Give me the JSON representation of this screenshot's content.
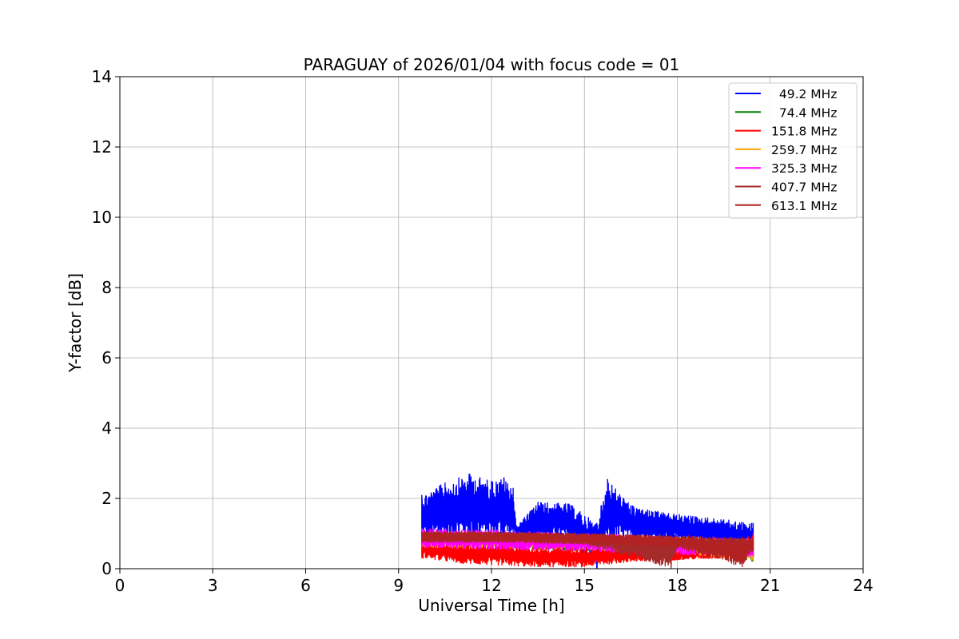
{
  "chart_data": {
    "type": "line",
    "title": "PARAGUAY of 2026/01/04 with focus code = 01",
    "xlabel": "Universal Time [h]",
    "ylabel": "Y-factor [dB]",
    "xlim": [
      0,
      24
    ],
    "ylim": [
      0,
      14
    ],
    "xticks": [
      "0",
      "3",
      "6",
      "9",
      "12",
      "15",
      "18",
      "21",
      "24"
    ],
    "yticks": [
      "0",
      "2",
      "4",
      "6",
      "8",
      "10",
      "12",
      "14"
    ],
    "grid": true,
    "legend_position": "top-right",
    "time_range_h": [
      9.75,
      20.45
    ],
    "series": [
      {
        "name": " 49.2 MHz",
        "color": "#0000ff",
        "envelope": [
          [
            9.75,
            0.85,
            2.1
          ],
          [
            10.5,
            0.9,
            2.45
          ],
          [
            11.3,
            0.9,
            2.7
          ],
          [
            12.0,
            0.9,
            2.5
          ],
          [
            12.4,
            0.9,
            2.6
          ],
          [
            12.7,
            0.9,
            2.3
          ],
          [
            12.8,
            0.9,
            1.2
          ],
          [
            13.5,
            0.85,
            1.9
          ],
          [
            14.5,
            0.85,
            1.85
          ],
          [
            15.4,
            0.0,
            1.3
          ],
          [
            15.75,
            0.85,
            2.55
          ],
          [
            16.5,
            0.8,
            1.8
          ],
          [
            17.5,
            0.8,
            1.6
          ],
          [
            18.5,
            0.75,
            1.5
          ],
          [
            19.5,
            0.7,
            1.4
          ],
          [
            20.45,
            0.3,
            1.3
          ]
        ]
      },
      {
        "name": " 74.4 MHz",
        "color": "#008000",
        "envelope": [
          [
            9.75,
            0.6,
            1.0
          ],
          [
            12.0,
            0.6,
            1.0
          ],
          [
            15.0,
            0.5,
            0.95
          ],
          [
            18.0,
            0.45,
            0.85
          ],
          [
            20.45,
            0.2,
            0.8
          ]
        ]
      },
      {
        "name": "151.8 MHz",
        "color": "#ff0000",
        "envelope": [
          [
            9.75,
            0.3,
            0.9
          ],
          [
            11.0,
            0.15,
            0.7
          ],
          [
            12.0,
            0.1,
            0.75
          ],
          [
            13.5,
            0.05,
            0.6
          ],
          [
            15.0,
            0.05,
            0.6
          ],
          [
            16.5,
            0.2,
            0.65
          ],
          [
            18.0,
            0.25,
            0.6
          ],
          [
            19.5,
            0.3,
            0.6
          ],
          [
            20.45,
            0.35,
            1.0
          ]
        ]
      },
      {
        "name": "259.7 MHz",
        "color": "#ffa500",
        "envelope": [
          [
            9.75,
            0.6,
            1.0
          ],
          [
            12.0,
            0.6,
            1.05
          ],
          [
            15.0,
            0.55,
            0.95
          ],
          [
            18.0,
            0.45,
            0.9
          ],
          [
            20.45,
            0.2,
            0.85
          ]
        ]
      },
      {
        "name": "325.3 MHz",
        "color": "#ff00ff",
        "envelope": [
          [
            9.75,
            0.6,
            1.15
          ],
          [
            12.0,
            0.55,
            1.1
          ],
          [
            15.0,
            0.5,
            1.0
          ],
          [
            18.0,
            0.4,
            0.9
          ],
          [
            20.45,
            0.35,
            0.85
          ]
        ]
      },
      {
        "name": "407.7 MHz",
        "color": "#a52a2a",
        "envelope": [
          [
            9.75,
            0.75,
            1.05
          ],
          [
            12.0,
            0.75,
            1.05
          ],
          [
            15.0,
            0.7,
            1.0
          ],
          [
            17.8,
            0.0,
            0.95
          ],
          [
            18.0,
            0.6,
            0.9
          ],
          [
            20.45,
            0.5,
            0.85
          ]
        ]
      },
      {
        "name": "613.1 MHz",
        "color": "#b22222",
        "envelope": [
          [
            9.75,
            0.75,
            1.05
          ],
          [
            12.0,
            0.75,
            1.05
          ],
          [
            15.0,
            0.7,
            1.0
          ],
          [
            18.0,
            0.6,
            0.95
          ],
          [
            20.1,
            0.05,
            0.9
          ],
          [
            20.45,
            0.5,
            0.85
          ]
        ]
      }
    ]
  }
}
